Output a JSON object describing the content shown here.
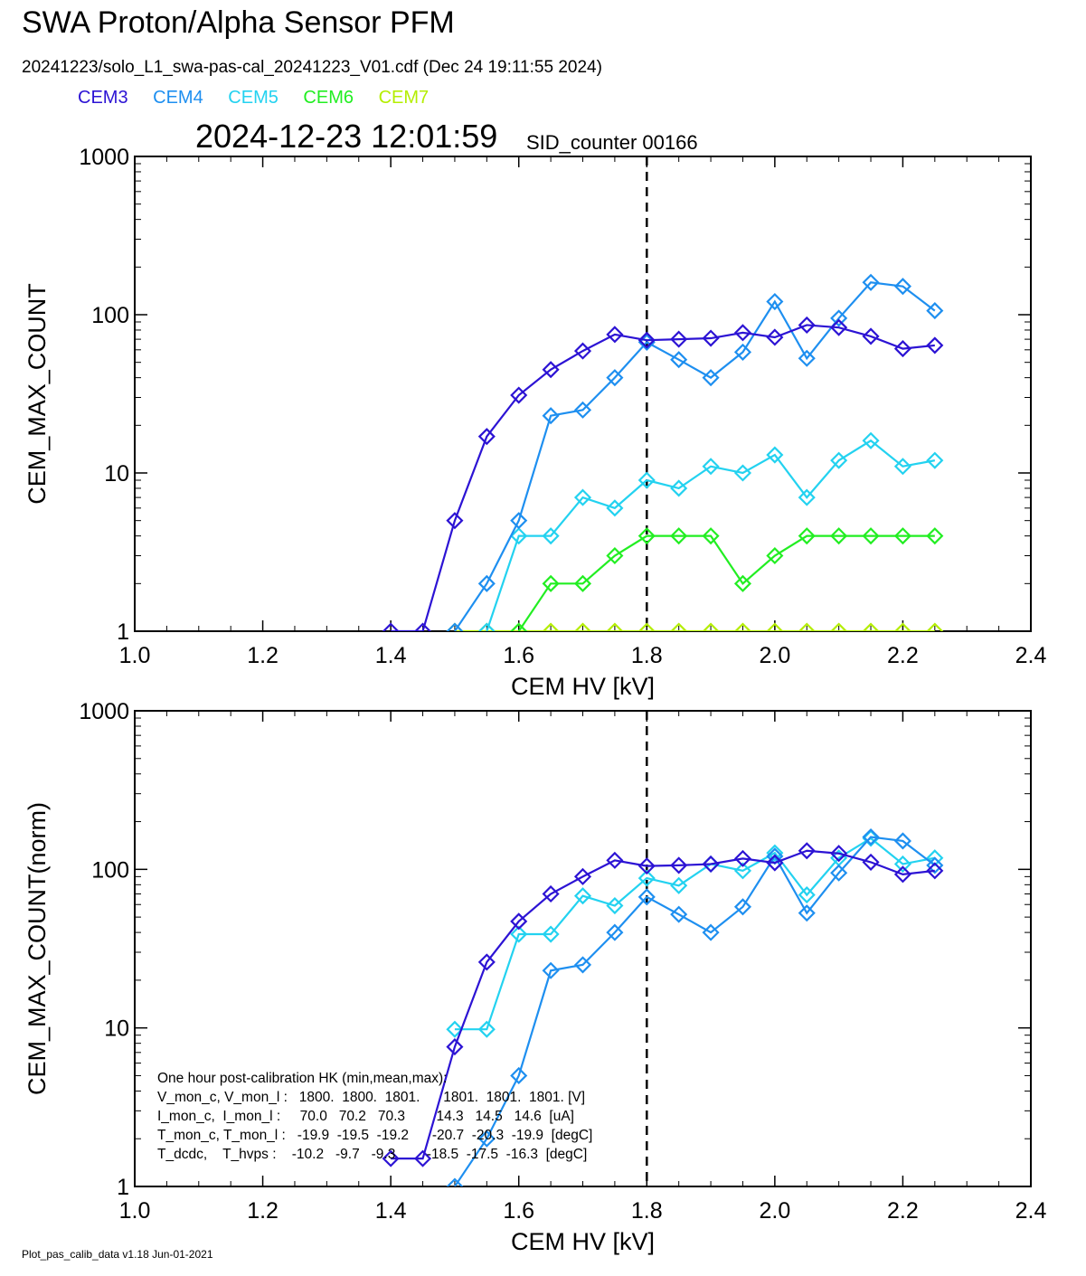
{
  "header": {
    "title": "SWA Proton/Alpha Sensor PFM",
    "subtitle": "20241223/solo_L1_swa-pas-cal_20241223_V01.cdf  (Dec 24 19:11:55 2024)",
    "datetime": "2024-12-23 12:01:59",
    "sid_counter": "SID_counter 00166"
  },
  "legend": [
    {
      "name": "CEM3",
      "color": "#2c13d4"
    },
    {
      "name": "CEM4",
      "color": "#1e8ff0"
    },
    {
      "name": "CEM5",
      "color": "#23d2f0"
    },
    {
      "name": "CEM6",
      "color": "#22ee22"
    },
    {
      "name": "CEM7",
      "color": "#b4ee00"
    }
  ],
  "footer": "Plot_pas_calib_data v1.18 Jun-01-2021",
  "chart_data": [
    {
      "type": "line",
      "xlabel": "CEM HV [kV]",
      "ylabel": "CEM_MAX_COUNT",
      "xlim": [
        1.0,
        2.4
      ],
      "ylim": [
        1,
        1000
      ],
      "yscale": "log",
      "xticks": [
        "1.0",
        "1.2",
        "1.4",
        "1.6",
        "1.8",
        "2.0",
        "2.2",
        "2.4"
      ],
      "yticks": [
        "1",
        "10",
        "100",
        "1000"
      ],
      "vline_x": 1.8,
      "marker": "diamond",
      "series": [
        {
          "name": "CEM3",
          "color": "#2c13d4",
          "x": [
            1.4,
            1.45,
            1.5,
            1.55,
            1.6,
            1.65,
            1.7,
            1.75,
            1.8,
            1.85,
            1.9,
            1.95,
            2.0,
            2.05,
            2.1,
            2.15,
            2.2,
            2.25
          ],
          "y": [
            1,
            1,
            5,
            17,
            31,
            45,
            59,
            75,
            69,
            70,
            71,
            77,
            72,
            86,
            83,
            73,
            61,
            64
          ]
        },
        {
          "name": "CEM4",
          "color": "#1e8ff0",
          "x": [
            1.5,
            1.55,
            1.6,
            1.65,
            1.7,
            1.75,
            1.8,
            1.85,
            1.9,
            1.95,
            2.0,
            2.05,
            2.1,
            2.15,
            2.2,
            2.25
          ],
          "y": [
            1,
            2,
            5,
            23,
            25,
            40,
            67,
            52,
            40,
            58,
            121,
            53,
            95,
            160,
            151,
            106
          ]
        },
        {
          "name": "CEM5",
          "color": "#23d2f0",
          "x": [
            1.55,
            1.6,
            1.65,
            1.7,
            1.75,
            1.8,
            1.85,
            1.9,
            1.95,
            2.0,
            2.05,
            2.1,
            2.15,
            2.2,
            2.25
          ],
          "y": [
            1,
            4,
            4,
            7,
            6,
            9,
            8,
            11,
            10,
            13,
            7,
            12,
            16,
            11,
            12
          ]
        },
        {
          "name": "CEM6",
          "color": "#22ee22",
          "x": [
            1.6,
            1.65,
            1.7,
            1.75,
            1.8,
            1.85,
            1.9,
            1.95,
            2.0,
            2.05,
            2.1,
            2.15,
            2.2,
            2.25
          ],
          "y": [
            1,
            2,
            2,
            3,
            4,
            4,
            4,
            2,
            3,
            4,
            4,
            4,
            4,
            4
          ]
        },
        {
          "name": "CEM7",
          "color": "#b4ee00",
          "x": [
            1.5,
            1.55,
            1.6,
            1.65,
            1.7,
            1.75,
            1.8,
            1.85,
            1.9,
            1.95,
            2.0,
            2.05,
            2.1,
            2.15,
            2.2,
            2.25
          ],
          "y": [
            1,
            1,
            1,
            1,
            1,
            1,
            1,
            1,
            1,
            1,
            1,
            1,
            1,
            1,
            1,
            1
          ]
        }
      ]
    },
    {
      "type": "line",
      "xlabel": "CEM HV [kV]",
      "ylabel": "CEM_MAX_COUNT(norm)",
      "xlim": [
        1.0,
        2.4
      ],
      "ylim": [
        1,
        1000
      ],
      "yscale": "log",
      "xticks": [
        "1.0",
        "1.2",
        "1.4",
        "1.6",
        "1.8",
        "2.0",
        "2.2",
        "2.4"
      ],
      "yticks": [
        "1",
        "10",
        "100",
        "1000"
      ],
      "vline_x": 1.8,
      "marker": "diamond",
      "series": [
        {
          "name": "CEM3",
          "color": "#2c13d4",
          "x": [
            1.4,
            1.45,
            1.5,
            1.55,
            1.6,
            1.65,
            1.7,
            1.75,
            1.8,
            1.85,
            1.9,
            1.95,
            2.0,
            2.05,
            2.1,
            2.15,
            2.2,
            2.25
          ],
          "y": [
            1.5,
            1.5,
            7.6,
            26,
            47,
            70,
            90,
            114,
            105,
            106,
            108,
            117,
            110,
            131,
            126,
            111,
            93,
            98
          ]
        },
        {
          "name": "CEM4",
          "color": "#1e8ff0",
          "x": [
            1.5,
            1.55,
            1.6,
            1.65,
            1.7,
            1.75,
            1.8,
            1.85,
            1.9,
            1.95,
            2.0,
            2.05,
            2.1,
            2.15,
            2.2,
            2.25
          ],
          "y": [
            1,
            2,
            5,
            23,
            25,
            40,
            67,
            52,
            40,
            58,
            121,
            53,
            95,
            160,
            151,
            106
          ]
        },
        {
          "name": "CEM5",
          "color": "#23d2f0",
          "x": [
            1.5,
            1.55,
            1.6,
            1.65,
            1.7,
            1.75,
            1.8,
            1.85,
            1.9,
            1.95,
            2.0,
            2.05,
            2.1,
            2.15,
            2.2,
            2.25
          ],
          "y": [
            9.8,
            9.8,
            39,
            39,
            68,
            59,
            88,
            79,
            108,
            98,
            127,
            69,
            118,
            157,
            108,
            118
          ]
        }
      ],
      "annotation": [
        "One hour post-calibration HK (min,mean,max):",
        "V_mon_c, V_mon_l :   1800.  1800.  1801.      1801.  1801.  1801. [V]",
        "I_mon_c,  I_mon_l :     70.0   70.2   70.3        14.3   14.5   14.6  [uA]",
        "T_mon_c, T_mon_l :   -19.9  -19.5  -19.2      -20.7  -20.3  -19.9  [degC]",
        "T_dcdc,    T_hvps :    -10.2   -9.7   -9.3        -18.5  -17.5  -16.3  [degC]"
      ]
    }
  ]
}
